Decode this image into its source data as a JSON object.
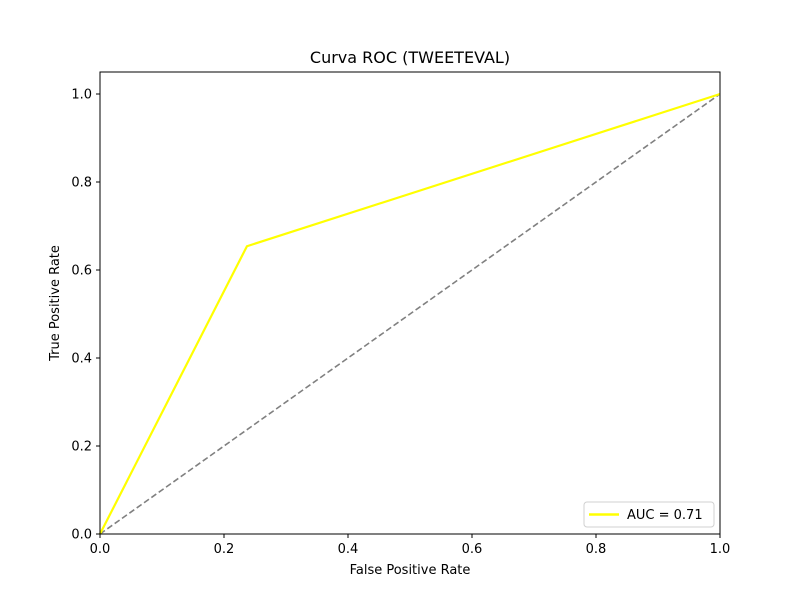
{
  "chart_data": {
    "type": "line",
    "title": "Curva ROC (TWEETEVAL)",
    "xlabel": "False Positive Rate",
    "ylabel": "True Positive Rate",
    "xlim": [
      0.0,
      1.0
    ],
    "ylim": [
      0.0,
      1.05
    ],
    "xticks": [
      0.0,
      0.2,
      0.4,
      0.6,
      0.8,
      1.0
    ],
    "yticks": [
      0.0,
      0.2,
      0.4,
      0.6,
      0.8,
      1.0
    ],
    "xtick_labels": [
      "0.0",
      "0.2",
      "0.4",
      "0.6",
      "0.8",
      "1.0"
    ],
    "ytick_labels": [
      "0.0",
      "0.2",
      "0.4",
      "0.6",
      "0.8",
      "1.0"
    ],
    "grid": false,
    "legend_position": "lower-right",
    "series": [
      {
        "name": "AUC = 0.71",
        "color": "#ffff00",
        "style": "solid",
        "x": [
          0.0,
          0.237,
          1.0
        ],
        "y": [
          0.0,
          0.654,
          1.0
        ]
      },
      {
        "color": "#808080",
        "style": "dashed",
        "x": [
          0.0,
          1.0
        ],
        "y": [
          0.0,
          1.0
        ]
      }
    ]
  }
}
